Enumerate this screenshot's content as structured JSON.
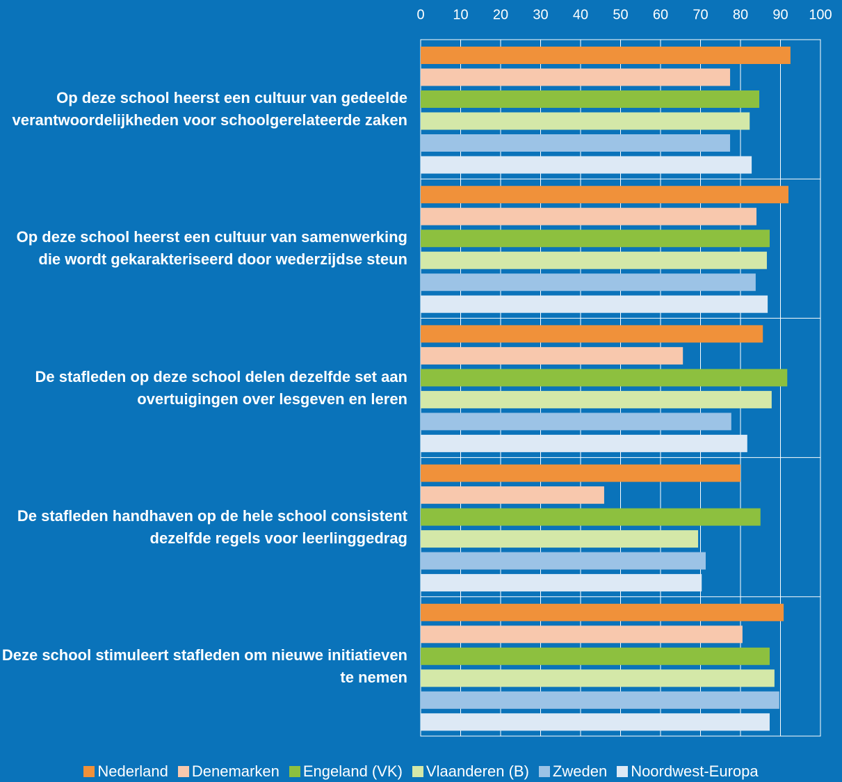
{
  "chart_data": {
    "type": "bar",
    "orientation": "horizontal",
    "categories": [
      "Op deze school heerst een cultuur van gedeelde verantwoordelijkheden voor schoolgerelateerde zaken",
      "Op deze school heerst een cultuur van samenwerking die wordt gekarakteriseerd door wederzijdse steun",
      "De stafleden op deze school delen dezelfde set aan overtuigingen over lesgeven en leren",
      "De stafleden handhaven op de hele school consistent dezelfde regels voor leerlinggedrag",
      "Deze school stimuleert stafleden om nieuwe initiatieven te nemen"
    ],
    "series": [
      {
        "name": "Nederland",
        "color": "#f0913a",
        "values": [
          92.5,
          92,
          85.6,
          80,
          90.8
        ]
      },
      {
        "name": "Denemarken",
        "color": "#f8c8ad",
        "values": [
          77.4,
          84,
          65.6,
          45.9,
          80.5
        ]
      },
      {
        "name": "Engeland (VK)",
        "color": "#8dc03f",
        "values": [
          84.7,
          87.3,
          91.7,
          85,
          87.3
        ]
      },
      {
        "name": "Vlaanderen (B)",
        "color": "#d4e8a8",
        "values": [
          82.3,
          86.6,
          87.8,
          69.4,
          88.5
        ]
      },
      {
        "name": "Zweden",
        "color": "#9cc3e6",
        "values": [
          77.4,
          83.8,
          77.7,
          71.3,
          89.7
        ]
      },
      {
        "name": "Noordwest-Europa",
        "color": "#dde9f5",
        "values": [
          82.8,
          86.8,
          81.7,
          70.3,
          87.3
        ]
      }
    ],
    "xlim": [
      0,
      100
    ],
    "xticks": [
      0,
      10,
      20,
      30,
      40,
      50,
      60,
      70,
      80,
      90,
      100
    ],
    "grid": true,
    "legend": "bottom"
  }
}
